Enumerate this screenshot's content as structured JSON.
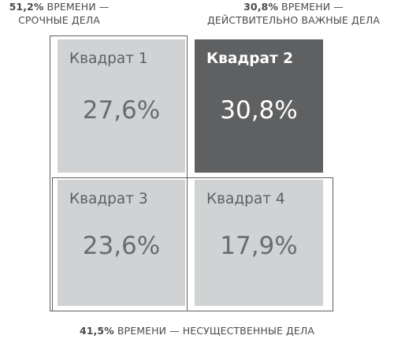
{
  "captions": {
    "top_left": {
      "bold": "51,2%",
      "rest_line1": " ВРЕМЕНИ —",
      "line2": "СРОЧНЫЕ ДЕЛА"
    },
    "top_right": {
      "bold": "30,8%",
      "rest_line1": " ВРЕМЕНИ —",
      "line2": "ДЕЙСТВИТЕЛЬНО ВАЖНЫЕ ДЕЛА"
    },
    "bottom": {
      "bold": "41,5%",
      "rest": " ВРЕМЕНИ — НЕСУЩЕСТВЕННЫЕ ДЕЛА"
    }
  },
  "quadrants": [
    {
      "title": "Квадрат 1",
      "value": "27,6%"
    },
    {
      "title": "Квадрат 2",
      "value": "30,8%"
    },
    {
      "title": "Квадрат 3",
      "value": "23,6%"
    },
    {
      "title": "Квадрат 4",
      "value": "17,9%"
    }
  ],
  "colors": {
    "light_fill": "#d1d2d4",
    "dark_fill": "#5f6062",
    "frame": "#5f6062"
  }
}
